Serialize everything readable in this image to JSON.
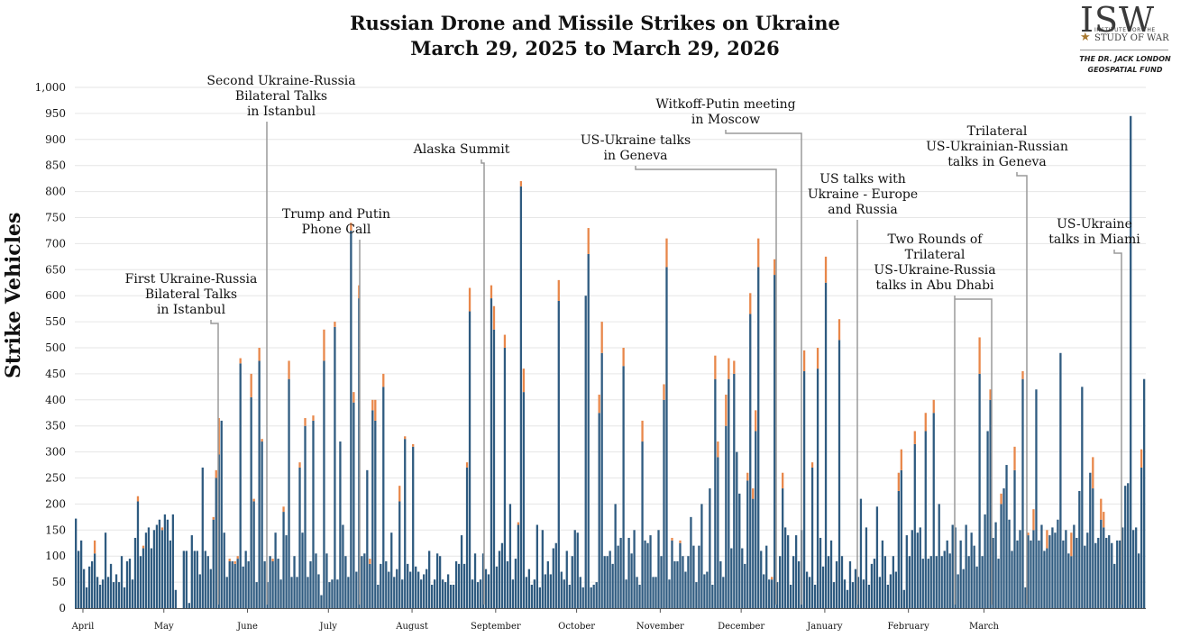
{
  "title_line1": "Russian Drone and Missile Strikes on Ukraine",
  "title_line2": "March 29, 2025 to March 29, 2026",
  "logo": {
    "mark": "ISW",
    "institute": "INSTITUTE FOR THE",
    "study": "STUDY OF WAR",
    "fund_line1": "THE DR. JACK LONDON",
    "fund_line2": "GEOSPATIAL FUND"
  },
  "colors": {
    "base": "#2f5b80",
    "top": "#e8874a",
    "grid": "#e6e6e6",
    "leader": "#9a9a9a"
  },
  "chart_data": {
    "type": "bar",
    "stacked": true,
    "ylabel": "Strike Vehicles",
    "ylim": [
      0,
      1000
    ],
    "yticks": [
      "0",
      "50",
      "100",
      "150",
      "200",
      "250",
      "300",
      "350",
      "400",
      "450",
      "500",
      "550",
      "600",
      "650",
      "700",
      "750",
      "800",
      "850",
      "900",
      "950",
      "1,000"
    ],
    "x_start": "2025-03-29",
    "months": [
      "April",
      "May",
      "June",
      "July",
      "August",
      "September",
      "October",
      "November",
      "December",
      "January",
      "February",
      "March"
    ],
    "grid": true,
    "series": [
      {
        "color": "#2f5b80",
        "values": [
          172,
          110,
          130,
          75,
          40,
          80,
          90,
          105,
          60,
          45,
          55,
          145,
          60,
          85,
          50,
          65,
          50,
          100,
          40,
          90,
          95,
          55,
          135,
          205,
          100,
          115,
          145,
          155,
          115,
          150,
          160,
          170,
          150,
          180,
          170,
          130,
          180,
          35,
          0,
          0,
          110,
          110,
          10,
          140,
          110,
          110,
          65,
          270,
          110,
          100,
          75,
          170,
          250,
          295,
          360,
          145,
          60,
          90,
          90,
          85,
          95,
          470,
          80,
          110,
          90,
          405,
          205,
          50,
          475,
          320,
          90,
          50,
          100,
          90,
          145,
          95,
          55,
          185,
          140,
          440,
          60,
          100,
          60,
          270,
          145,
          350,
          60,
          90,
          360,
          105,
          65,
          25,
          475,
          105,
          50,
          55,
          540,
          55,
          320,
          160,
          100,
          60,
          725,
          395,
          70,
          595,
          100,
          105,
          265,
          85,
          380,
          360,
          45,
          85,
          425,
          90,
          70,
          145,
          60,
          75,
          205,
          55,
          325,
          85,
          70,
          310,
          80,
          70,
          55,
          65,
          75,
          110,
          45,
          55,
          105,
          100,
          55,
          50,
          65,
          45,
          45,
          90,
          85,
          140,
          85,
          270,
          570,
          55,
          105,
          50,
          55,
          105,
          75,
          65,
          595,
          535,
          80,
          110,
          125,
          500,
          90,
          200,
          55,
          95,
          160,
          810,
          415,
          60,
          75,
          45,
          55,
          160,
          40,
          150,
          65,
          90,
          65,
          115,
          125,
          590,
          70,
          55,
          110,
          45,
          100,
          150,
          145,
          60,
          40,
          600,
          680,
          40,
          45,
          50,
          375,
          490,
          100,
          100,
          110,
          85,
          200,
          120,
          135,
          465,
          55,
          135,
          105,
          150,
          60,
          45,
          320,
          130,
          125,
          140,
          60,
          60,
          150,
          100,
          400,
          655,
          55,
          130,
          90,
          90,
          125,
          100,
          70,
          100,
          175,
          120,
          50,
          120,
          200,
          65,
          70,
          230,
          45,
          440,
          290,
          90,
          60,
          350,
          440,
          115,
          450,
          300,
          220,
          115,
          85,
          245,
          565,
          210,
          340,
          655,
          110,
          65,
          120,
          55,
          55,
          640,
          50,
          100,
          230,
          155,
          140,
          45,
          100,
          140,
          90,
          150,
          455,
          70,
          60,
          270,
          45,
          460,
          135,
          80,
          625,
          100,
          130,
          50,
          90,
          515,
          100,
          55,
          35,
          90,
          50,
          75,
          60,
          210,
          55,
          155,
          45,
          85,
          95,
          195,
          60,
          130,
          100,
          45,
          65,
          100,
          70,
          225,
          265,
          35,
          140,
          100,
          150,
          315,
          145,
          155,
          95,
          340,
          95,
          100,
          375,
          100,
          200,
          100,
          110,
          130,
          105,
          160,
          155,
          65,
          130,
          75,
          160,
          100,
          145,
          120,
          80,
          450,
          100,
          180,
          340,
          400,
          135,
          165,
          95,
          200,
          230,
          275,
          170,
          110,
          265,
          130,
          150,
          440,
          40,
          140,
          130,
          150,
          420,
          130,
          160,
          110,
          115,
          140,
          155,
          145,
          170,
          490,
          130,
          150,
          105,
          100,
          160,
          135,
          225,
          425,
          120,
          145,
          260,
          230,
          125,
          135,
          170,
          155,
          135,
          140,
          125,
          85,
          130,
          130,
          155,
          235,
          240,
          945,
          150,
          155,
          105,
          270,
          440
        ]
      },
      {
        "color": "#e8874a",
        "values": [
          0,
          0,
          0,
          0,
          0,
          0,
          0,
          25,
          0,
          0,
          0,
          0,
          0,
          0,
          0,
          0,
          0,
          0,
          0,
          0,
          0,
          0,
          0,
          10,
          0,
          5,
          0,
          0,
          0,
          0,
          0,
          0,
          5,
          0,
          0,
          0,
          0,
          0,
          0,
          0,
          0,
          0,
          0,
          0,
          0,
          0,
          0,
          0,
          0,
          0,
          0,
          5,
          15,
          70,
          0,
          0,
          0,
          5,
          0,
          5,
          5,
          10,
          0,
          0,
          0,
          45,
          5,
          0,
          25,
          5,
          0,
          0,
          0,
          5,
          0,
          0,
          0,
          10,
          0,
          35,
          0,
          0,
          0,
          10,
          0,
          15,
          0,
          0,
          10,
          0,
          0,
          0,
          60,
          0,
          0,
          0,
          10,
          0,
          0,
          0,
          0,
          0,
          15,
          20,
          0,
          25,
          0,
          0,
          0,
          10,
          20,
          40,
          0,
          0,
          25,
          0,
          0,
          0,
          0,
          0,
          30,
          0,
          5,
          0,
          0,
          5,
          0,
          0,
          0,
          0,
          0,
          0,
          0,
          0,
          0,
          0,
          0,
          0,
          0,
          0,
          0,
          0,
          0,
          0,
          0,
          10,
          45,
          0,
          0,
          0,
          0,
          0,
          0,
          0,
          25,
          45,
          0,
          0,
          0,
          25,
          0,
          0,
          0,
          0,
          5,
          10,
          45,
          0,
          0,
          0,
          0,
          0,
          0,
          0,
          0,
          0,
          0,
          0,
          0,
          40,
          0,
          0,
          0,
          0,
          0,
          0,
          0,
          0,
          0,
          0,
          50,
          0,
          0,
          0,
          35,
          60,
          0,
          0,
          0,
          0,
          0,
          0,
          0,
          35,
          0,
          0,
          0,
          0,
          0,
          0,
          40,
          0,
          0,
          0,
          0,
          0,
          0,
          0,
          30,
          55,
          0,
          5,
          0,
          0,
          5,
          0,
          0,
          0,
          0,
          0,
          0,
          0,
          0,
          0,
          0,
          0,
          0,
          45,
          30,
          0,
          0,
          60,
          40,
          0,
          25,
          0,
          0,
          0,
          0,
          15,
          40,
          20,
          40,
          55,
          0,
          0,
          0,
          0,
          5,
          30,
          0,
          0,
          30,
          0,
          0,
          0,
          0,
          0,
          0,
          0,
          40,
          0,
          0,
          10,
          0,
          40,
          0,
          0,
          50,
          0,
          0,
          0,
          0,
          40,
          0,
          0,
          0,
          0,
          0,
          0,
          0,
          0,
          0,
          0,
          0,
          0,
          0,
          0,
          0,
          0,
          0,
          0,
          0,
          0,
          0,
          35,
          40,
          0,
          0,
          0,
          0,
          25,
          0,
          0,
          0,
          35,
          0,
          0,
          25,
          0,
          0,
          0,
          0,
          0,
          0,
          0,
          0,
          0,
          0,
          0,
          0,
          0,
          0,
          0,
          0,
          70,
          0,
          0,
          0,
          20,
          0,
          0,
          0,
          20,
          0,
          0,
          0,
          0,
          45,
          0,
          0,
          15,
          0,
          5,
          0,
          40,
          0,
          0,
          0,
          0,
          35,
          0,
          0,
          0,
          0,
          0,
          0,
          0,
          0,
          45,
          0,
          0,
          0,
          0,
          0,
          0,
          0,
          60,
          0,
          0,
          40,
          30,
          0,
          0,
          0,
          0,
          0,
          0,
          0,
          0,
          0,
          0,
          0,
          0,
          0,
          35,
          0,
          0,
          0,
          0
        ]
      }
    ],
    "annotations": [
      {
        "lines": [
          "First Ukraine-Russia",
          "Bilateral Talks",
          "in Istanbul"
        ],
        "date": "2025-05-16"
      },
      {
        "lines": [
          "Second Ukraine-Russia",
          "Bilateral Talks",
          "in Istanbul"
        ],
        "date": "2025-06-02"
      },
      {
        "lines": [
          "Trump and Putin",
          "Phone Call"
        ],
        "date": "2025-07-03"
      },
      {
        "lines": [
          "Alaska Summit"
        ],
        "date": "2025-08-15"
      },
      {
        "lines": [
          "US-Ukraine talks",
          "in Geneva"
        ],
        "date": "2025-11-23"
      },
      {
        "lines": [
          "Witkoff-Putin meeting",
          "in Moscow"
        ],
        "date": "2025-12-02"
      },
      {
        "lines": [
          "US talks with",
          "Ukraine - Europe",
          "and Russia"
        ],
        "date": "2025-12-21"
      },
      {
        "lines": [
          "Two Rounds of",
          "Trilateral",
          "US-Ukraine-Russia",
          "talks in Abu Dhabi"
        ],
        "date": "2026-01-24"
      },
      {
        "lines": [
          "Trilateral",
          "US-Ukrainian-Russian",
          "talks in Geneva"
        ],
        "date": "2026-02-17"
      },
      {
        "lines": [
          "US-Ukraine",
          "talks in Miami"
        ],
        "date": "2026-03-21"
      }
    ]
  }
}
